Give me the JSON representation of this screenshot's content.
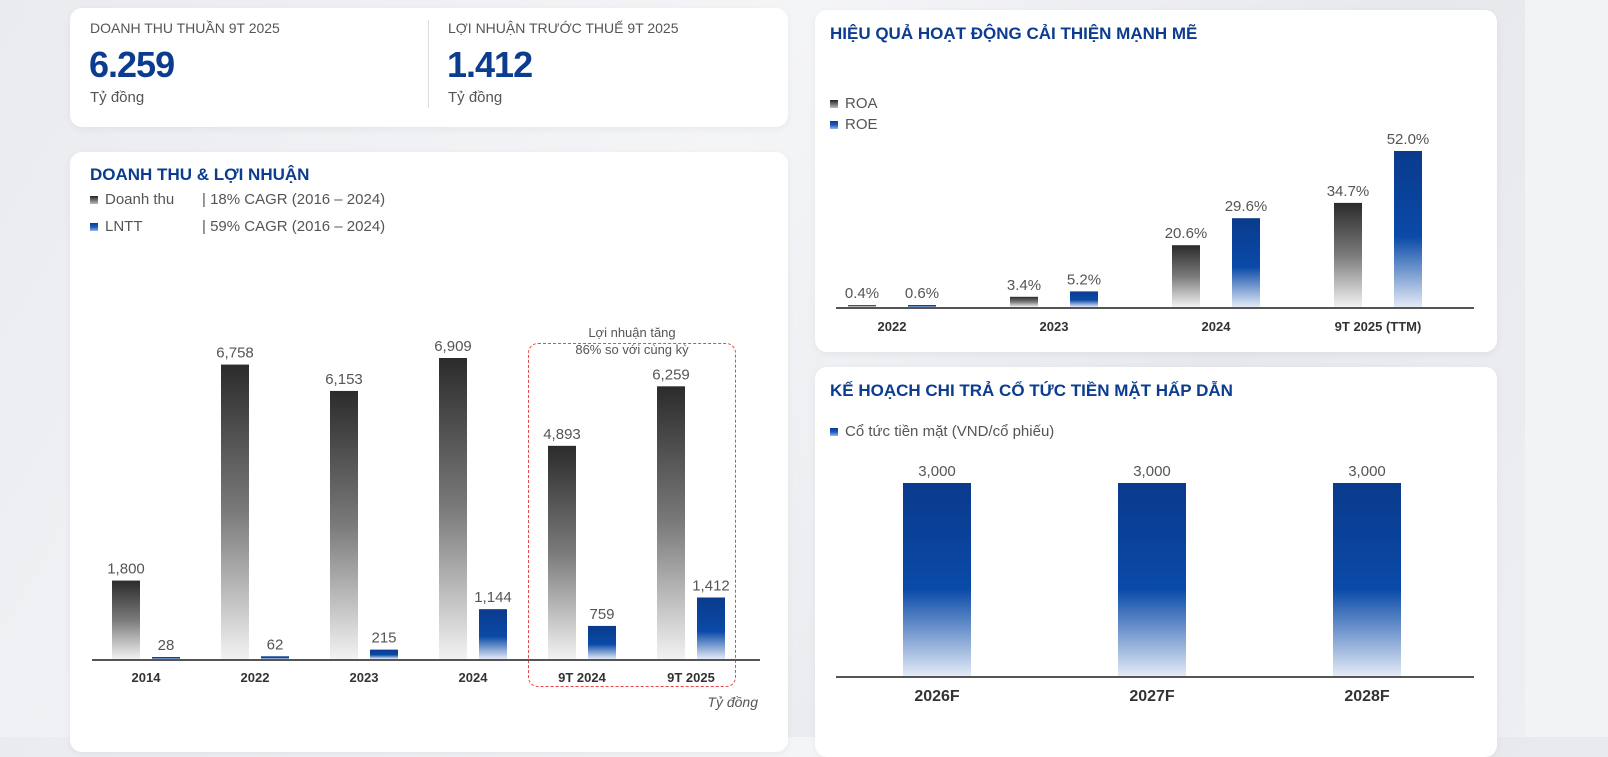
{
  "kpi": {
    "revenue": {
      "label": "DOANH THU THUẦN 9T 2025",
      "value": "6.259",
      "unit": "Tỷ đồng"
    },
    "profit": {
      "label": "LỢI NHUẬN TRƯỚC THUẾ 9T 2025",
      "value": "1.412",
      "unit": "Tỷ đồng"
    }
  },
  "colors": {
    "brand": "#0b3c8f",
    "dark_bar": "#2b2b2b",
    "blue_bar": "#0a4aa8",
    "highlight_box": "#e8474c"
  },
  "chart_data": [
    {
      "type": "bar",
      "title": "DOANH THU & LỢI NHUẬN",
      "categories": [
        "2014",
        "2022",
        "2023",
        "2024",
        "9T 2024",
        "9T 2025"
      ],
      "series": [
        {
          "name": "Doanh thu",
          "note": "| 18% CAGR (2016 – 2024)",
          "values": [
            1800,
            6758,
            6153,
            6909,
            4893,
            6259
          ],
          "labels": [
            "1,800",
            "6,758",
            "6,153",
            "6,909",
            "4,893",
            "6,259"
          ]
        },
        {
          "name": "LNTT",
          "note": "| 59% CAGR (2016 – 2024)",
          "values": [
            28,
            62,
            215,
            1144,
            759,
            1412
          ],
          "labels": [
            "28",
            "62",
            "215",
            "1,144",
            "759",
            "1,412"
          ]
        }
      ],
      "annotation": {
        "line1": "Lợi nhuận tăng",
        "line2": "86% so với cùng kỳ"
      },
      "unit": "Tỷ đồng",
      "legend": "top-left",
      "grid": false,
      "ylim": [
        0,
        6909
      ]
    },
    {
      "type": "bar",
      "title": "HIỆU QUẢ HOẠT ĐỘNG CẢI THIỆN MẠNH MẼ",
      "categories": [
        "2022",
        "2023",
        "2024",
        "9T 2025 (TTM)"
      ],
      "series": [
        {
          "name": "ROA",
          "values": [
            0.4,
            3.4,
            20.6,
            34.7
          ],
          "labels": [
            "0.4%",
            "3.4%",
            "20.6%",
            "34.7%"
          ]
        },
        {
          "name": "ROE",
          "values": [
            0.6,
            5.2,
            29.6,
            52.0
          ],
          "labels": [
            "0.6%",
            "5.2%",
            "29.6%",
            "52.0%"
          ]
        }
      ],
      "legend": "top-left",
      "grid": false,
      "ylim": [
        0,
        52
      ]
    },
    {
      "type": "bar",
      "title": "KẾ HOẠCH CHI TRẢ CỔ TỨC TIỀN MẶT HẤP DẪN",
      "categories": [
        "2026F",
        "2027F",
        "2028F"
      ],
      "series": [
        {
          "name": "Cổ tức tiền mặt (VND/cổ phiếu)",
          "values": [
            3000,
            3000,
            3000
          ],
          "labels": [
            "3,000",
            "3,000",
            "3,000"
          ]
        }
      ],
      "legend": "top-left",
      "grid": false,
      "ylim": [
        0,
        3000
      ]
    }
  ]
}
